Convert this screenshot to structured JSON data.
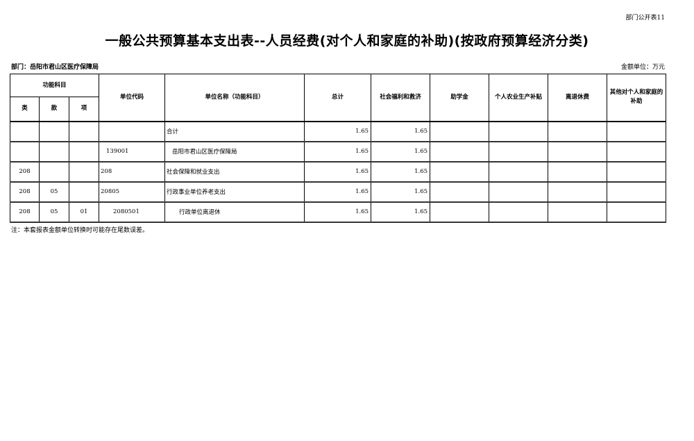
{
  "form_code": "部门公开表11",
  "title": "一般公共预算基本支出表--人员经费(对个人和家庭的补助)(按政府预算经济分类)",
  "department": "部门：岳阳市君山区医疗保障局",
  "unit": "金额单位：万元",
  "headers": {
    "func_subject": "功能科目",
    "lei": "类",
    "kuan": "款",
    "xiang": "项",
    "unit_code": "单位代码",
    "unit_name": "单位名称（功能科目）",
    "total": "总计",
    "social_welfare": "社会福利和救济",
    "scholarship": "助学金",
    "farm_subsidy": "个人农业生产补贴",
    "retirement": "离退休费",
    "other": "其他对个人和家庭的补助"
  },
  "rows": [
    {
      "lei": "",
      "kuan": "",
      "xiang": "",
      "code": "",
      "name": "合计",
      "total": "1.65",
      "social_welfare": "1.65",
      "scholarship": "",
      "farm_subsidy": "",
      "retirement": "",
      "other": ""
    },
    {
      "lei": "",
      "kuan": "",
      "xiang": "",
      "code": "139001",
      "name": "岳阳市君山区医疗保障局",
      "total": "1.65",
      "social_welfare": "1.65",
      "scholarship": "",
      "farm_subsidy": "",
      "retirement": "",
      "other": ""
    },
    {
      "lei": "208",
      "kuan": "",
      "xiang": "",
      "code": "208",
      "name": "社会保障和就业支出",
      "total": "1.65",
      "social_welfare": "1.65",
      "scholarship": "",
      "farm_subsidy": "",
      "retirement": "",
      "other": ""
    },
    {
      "lei": "208",
      "kuan": "05",
      "xiang": "",
      "code": "20805",
      "name": "行政事业单位养老支出",
      "total": "1.65",
      "social_welfare": "1.65",
      "scholarship": "",
      "farm_subsidy": "",
      "retirement": "",
      "other": ""
    },
    {
      "lei": "208",
      "kuan": "05",
      "xiang": "01",
      "code": "2080501",
      "name": "行政单位离退休",
      "total": "1.65",
      "social_welfare": "1.65",
      "scholarship": "",
      "farm_subsidy": "",
      "retirement": "",
      "other": ""
    }
  ],
  "note": "注：本套报表金额单位转换时可能存在尾数误差。"
}
